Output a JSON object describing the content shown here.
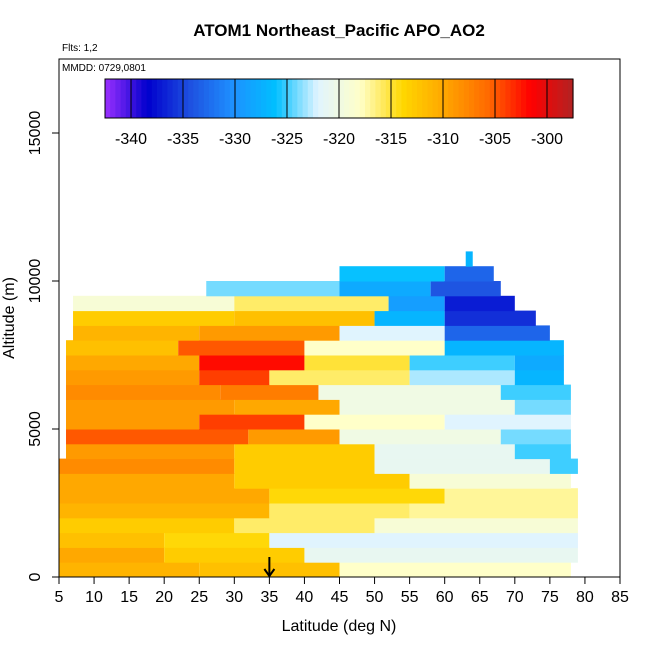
{
  "chart_data": {
    "type": "heatmap",
    "title": "ATOM1 Northeast_Pacific APO_AO2",
    "annotations": {
      "flights": "Flts: 1,2",
      "dates": "MMDD: 0729,0801"
    },
    "xlabel": "Latitude (deg N)",
    "ylabel": "Altitude (m)",
    "xlim": [
      5,
      85
    ],
    "ylim": [
      0,
      17500
    ],
    "xticks": [
      "5",
      "10",
      "15",
      "20",
      "25",
      "30",
      "35",
      "40",
      "45",
      "50",
      "55",
      "60",
      "65",
      "70",
      "75",
      "80",
      "85"
    ],
    "yticks": [
      "0",
      "5000",
      "10000",
      "15000"
    ],
    "colorbar": {
      "min": -342.5,
      "max": -297.5,
      "ticks": [
        "-340",
        "-335",
        "-330",
        "-325",
        "-320",
        "-315",
        "-310",
        "-305",
        "-300"
      ],
      "colors": [
        "#9B30FF",
        "#0000CD",
        "#1E50E0",
        "#1E90FF",
        "#00BFFF",
        "#E0F4FF",
        "#FFFFC8",
        "#FFD700",
        "#FFA500",
        "#FF6A00",
        "#FF0000",
        "#B22222"
      ]
    },
    "x_marker": 35,
    "rows": [
      {
        "y0": 0,
        "y1": 500,
        "segments": [
          [
            5,
            25,
            -311
          ],
          [
            25,
            45,
            -312
          ],
          [
            45,
            78,
            -318
          ]
        ]
      },
      {
        "y0": 500,
        "y1": 1000,
        "segments": [
          [
            5,
            20,
            -310
          ],
          [
            20,
            40,
            -313
          ],
          [
            40,
            79,
            -321
          ]
        ]
      },
      {
        "y0": 1000,
        "y1": 1500,
        "segments": [
          [
            5,
            20,
            -312
          ],
          [
            20,
            35,
            -314
          ],
          [
            35,
            79,
            -322
          ]
        ]
      },
      {
        "y0": 1500,
        "y1": 2000,
        "segments": [
          [
            5,
            30,
            -313
          ],
          [
            30,
            50,
            -316
          ],
          [
            50,
            79,
            -319
          ]
        ]
      },
      {
        "y0": 2000,
        "y1": 2500,
        "segments": [
          [
            5,
            35,
            -311
          ],
          [
            35,
            55,
            -316
          ],
          [
            55,
            79,
            -317
          ]
        ]
      },
      {
        "y0": 2500,
        "y1": 3000,
        "segments": [
          [
            5,
            35,
            -310
          ],
          [
            35,
            60,
            -314
          ],
          [
            60,
            79,
            -317
          ]
        ]
      },
      {
        "y0": 3000,
        "y1": 3500,
        "segments": [
          [
            5,
            30,
            -310
          ],
          [
            30,
            55,
            -313
          ],
          [
            55,
            78,
            -319
          ]
        ]
      },
      {
        "y0": 3500,
        "y1": 4000,
        "segments": [
          [
            5,
            30,
            -308
          ],
          [
            30,
            50,
            -313
          ],
          [
            50,
            75,
            -321
          ],
          [
            75,
            79,
            -325
          ]
        ]
      },
      {
        "y0": 4000,
        "y1": 4500,
        "segments": [
          [
            6,
            30,
            -309
          ],
          [
            30,
            50,
            -313
          ],
          [
            50,
            70,
            -321
          ],
          [
            70,
            78,
            -325
          ]
        ]
      },
      {
        "y0": 4500,
        "y1": 5000,
        "segments": [
          [
            6,
            32,
            -305
          ],
          [
            32,
            45,
            -309
          ],
          [
            45,
            68,
            -320
          ],
          [
            68,
            78,
            -324
          ]
        ]
      },
      {
        "y0": 5000,
        "y1": 5500,
        "segments": [
          [
            6,
            25,
            -309
          ],
          [
            25,
            40,
            -304
          ],
          [
            40,
            60,
            -318
          ],
          [
            60,
            78,
            -322
          ]
        ]
      },
      {
        "y0": 5500,
        "y1": 6000,
        "segments": [
          [
            6,
            30,
            -309
          ],
          [
            30,
            45,
            -310
          ],
          [
            45,
            70,
            -320
          ],
          [
            70,
            78,
            -324
          ]
        ]
      },
      {
        "y0": 6000,
        "y1": 6500,
        "segments": [
          [
            6,
            28,
            -308
          ],
          [
            28,
            42,
            -307
          ],
          [
            42,
            68,
            -320
          ],
          [
            68,
            78,
            -325
          ]
        ]
      },
      {
        "y0": 6500,
        "y1": 7000,
        "segments": [
          [
            6,
            25,
            -309
          ],
          [
            25,
            35,
            -304
          ],
          [
            35,
            55,
            -316
          ],
          [
            55,
            70,
            -323
          ],
          [
            70,
            77,
            -327
          ]
        ]
      },
      {
        "y0": 7000,
        "y1": 7500,
        "segments": [
          [
            6,
            25,
            -310
          ],
          [
            25,
            40,
            -302
          ],
          [
            40,
            55,
            -315
          ],
          [
            55,
            70,
            -325
          ],
          [
            70,
            77,
            -328
          ]
        ]
      },
      {
        "y0": 7500,
        "y1": 8000,
        "segments": [
          [
            6,
            22,
            -312
          ],
          [
            22,
            40,
            -305
          ],
          [
            40,
            60,
            -318
          ],
          [
            60,
            77,
            -327
          ]
        ]
      },
      {
        "y0": 8000,
        "y1": 8500,
        "segments": [
          [
            7,
            25,
            -311
          ],
          [
            25,
            45,
            -309
          ],
          [
            45,
            60,
            -322
          ],
          [
            60,
            75,
            -333
          ]
        ]
      },
      {
        "y0": 8500,
        "y1": 9000,
        "segments": [
          [
            7,
            30,
            -313
          ],
          [
            30,
            50,
            -312
          ],
          [
            50,
            60,
            -327
          ],
          [
            60,
            73,
            -336
          ]
        ]
      },
      {
        "y0": 9000,
        "y1": 9500,
        "segments": [
          [
            7,
            30,
            -319
          ],
          [
            30,
            52,
            -316
          ],
          [
            52,
            60,
            -329
          ],
          [
            60,
            70,
            -337
          ]
        ]
      },
      {
        "y0": 9500,
        "y1": 10000,
        "segments": [
          [
            26,
            45,
            -324
          ],
          [
            45,
            58,
            -328
          ],
          [
            58,
            68,
            -334
          ]
        ]
      },
      {
        "y0": 10000,
        "y1": 10500,
        "segments": [
          [
            45,
            60,
            -326
          ],
          [
            60,
            67,
            -333
          ]
        ]
      },
      {
        "y0": 10500,
        "y1": 11000,
        "segments": [
          [
            63,
            64,
            -327
          ]
        ]
      }
    ]
  }
}
